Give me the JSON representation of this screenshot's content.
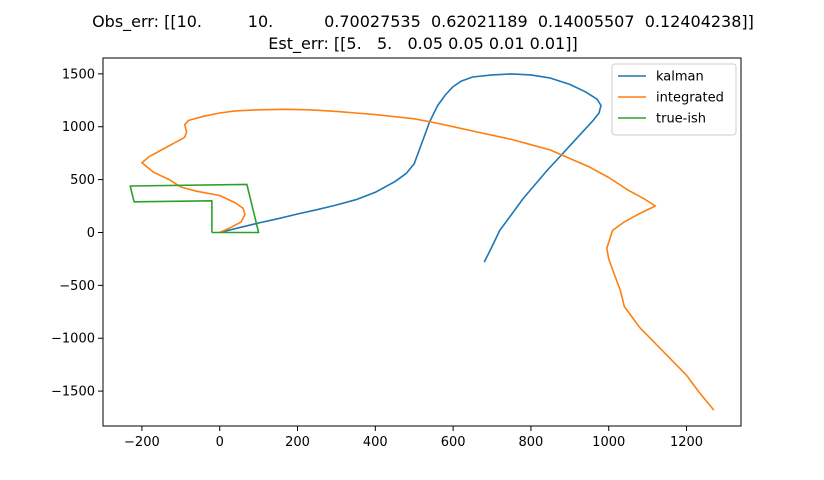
{
  "chart_data": {
    "type": "line",
    "title_lines": [
      "Obs_err: [[10.         10.          0.70027535  0.62021189  0.14005507  0.12404238]]",
      "Est_err: [[5.   5.   0.05 0.05 0.01 0.01]]"
    ],
    "xlabel": "",
    "ylabel": "",
    "xlim": [
      -300,
      1340
    ],
    "ylim": [
      -1830,
      1650
    ],
    "xticks": [
      -200,
      0,
      200,
      400,
      600,
      800,
      1000,
      1200
    ],
    "yticks": [
      -1500,
      -1000,
      -500,
      0,
      500,
      1000,
      1500
    ],
    "xtick_labels": [
      "−200",
      "0",
      "200",
      "400",
      "600",
      "800",
      "1000",
      "1200"
    ],
    "ytick_labels": [
      "−1500",
      "−1000",
      "−500",
      "0",
      "500",
      "1000",
      "1500"
    ],
    "grid": false,
    "legend_position": "top-right",
    "series": [
      {
        "name": "kalman",
        "color": "#1f77b4",
        "x": [
          0,
          50,
          100,
          150,
          200,
          250,
          300,
          350,
          400,
          450,
          480,
          500,
          520,
          540,
          560,
          580,
          600,
          620,
          650,
          700,
          750,
          800,
          850,
          900,
          940,
          970,
          980,
          975,
          960,
          930,
          900,
          870,
          840,
          810,
          780,
          750,
          720,
          695,
          680
        ],
        "y": [
          0,
          45,
          90,
          130,
          175,
          215,
          260,
          310,
          380,
          480,
          560,
          650,
          850,
          1050,
          1200,
          1300,
          1380,
          1430,
          1470,
          1490,
          1500,
          1490,
          1460,
          1400,
          1330,
          1260,
          1200,
          1130,
          1060,
          940,
          820,
          700,
          580,
          450,
          320,
          170,
          20,
          -170,
          -280
        ]
      },
      {
        "name": "integrated",
        "color": "#ff7f0e",
        "x": [
          0,
          30,
          55,
          65,
          60,
          40,
          0,
          -60,
          -100,
          -130,
          -170,
          -200,
          -180,
          -150,
          -120,
          -90,
          -85,
          -90,
          -80,
          -40,
          0,
          40,
          100,
          170,
          230,
          280,
          300,
          350,
          400,
          450,
          500,
          550,
          600,
          650,
          700,
          750,
          800,
          850,
          900,
          950,
          1000,
          1050,
          1090,
          1120,
          1080,
          1040,
          1010,
          995,
          1000,
          1010,
          1020,
          1030,
          1040,
          1060,
          1080,
          1120,
          1160,
          1200,
          1230,
          1270
        ],
        "y": [
          0,
          50,
          100,
          170,
          230,
          280,
          350,
          390,
          430,
          500,
          570,
          660,
          720,
          780,
          840,
          900,
          950,
          1020,
          1060,
          1100,
          1130,
          1150,
          1160,
          1165,
          1160,
          1150,
          1145,
          1130,
          1115,
          1095,
          1075,
          1040,
          1000,
          960,
          920,
          880,
          830,
          780,
          700,
          620,
          520,
          400,
          320,
          250,
          180,
          100,
          20,
          -150,
          -250,
          -350,
          -450,
          -550,
          -700,
          -800,
          -900,
          -1050,
          -1200,
          -1350,
          -1500,
          -1680
        ]
      },
      {
        "name": "true-ish",
        "color": "#2ca02c",
        "x": [
          -20,
          100,
          70,
          -230,
          -220,
          -20,
          -20
        ],
        "y": [
          0,
          0,
          455,
          440,
          290,
          300,
          0
        ]
      }
    ]
  }
}
